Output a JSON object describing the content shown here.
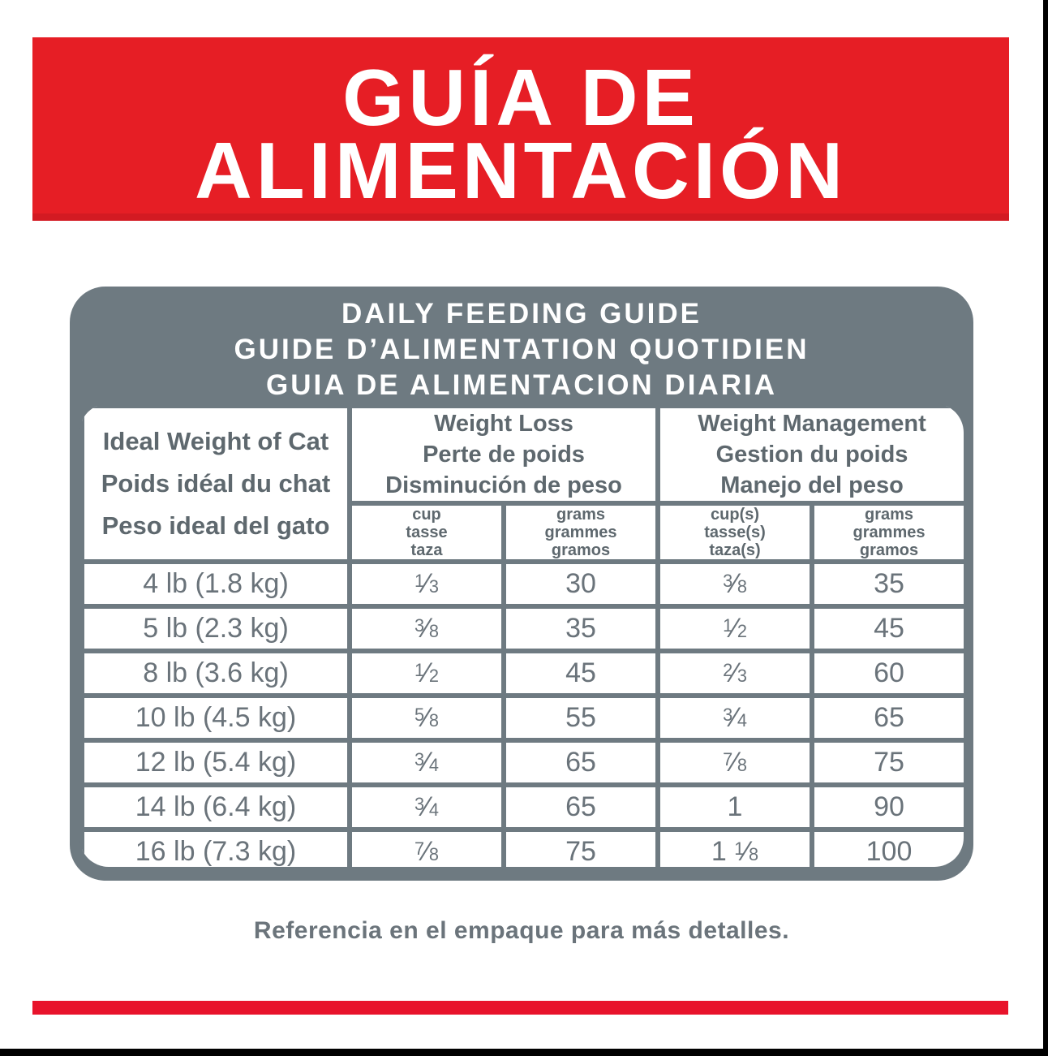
{
  "banner": {
    "line1": "GUÍA DE",
    "line2": "ALIMENTACIÓN"
  },
  "card": {
    "title_lines": [
      "DAILY FEEDING GUIDE",
      "GUIDE D’ALIMENTATION QUOTIDIEN",
      "GUIA DE ALIMENTACION DIARIA"
    ],
    "col1_header_lines": [
      "Ideal Weight of Cat",
      "Poids idéal du chat",
      "Peso ideal del gato"
    ],
    "groups": [
      {
        "title_lines": [
          "Weight Loss",
          "Perte de poids",
          "Disminución de peso"
        ],
        "subcols": [
          [
            "cup",
            "tasse",
            "taza"
          ],
          [
            "grams",
            "grammes",
            "gramos"
          ]
        ]
      },
      {
        "title_lines": [
          "Weight Management",
          "Gestion du poids",
          "Manejo del peso"
        ],
        "subcols": [
          [
            "cup(s)",
            "tasse(s)",
            "taza(s)"
          ],
          [
            "grams",
            "grammes",
            "gramos"
          ]
        ]
      }
    ],
    "rows": [
      [
        "4 lb (1.8 kg)",
        "1/3",
        "30",
        "3/8",
        "35"
      ],
      [
        "5 lb (2.3 kg)",
        "3/8",
        "35",
        "1/2",
        "45"
      ],
      [
        "8 lb (3.6 kg)",
        "1/2",
        "45",
        "2/3",
        "60"
      ],
      [
        "10 lb (4.5 kg)",
        "5/8",
        "55",
        "3/4",
        "65"
      ],
      [
        "12 lb (5.4 kg)",
        "3/4",
        "65",
        "7/8",
        "75"
      ],
      [
        "14 lb (6.4 kg)",
        "3/4",
        "65",
        "1",
        "90"
      ],
      [
        "16 lb (7.3 kg)",
        "7/8",
        "75",
        "1 1/8",
        "100"
      ]
    ]
  },
  "footnote": "Referencia en el empaque para más detalles.",
  "colors": {
    "banner_red": "#e61e25",
    "banner_red_dark": "#d31a22",
    "strip_red": "#e8132b",
    "card_gray": "#6e7a81",
    "header_text_gray": "#5e686e",
    "data_text_gray": "#6a737a",
    "edge_black": "#000000"
  }
}
